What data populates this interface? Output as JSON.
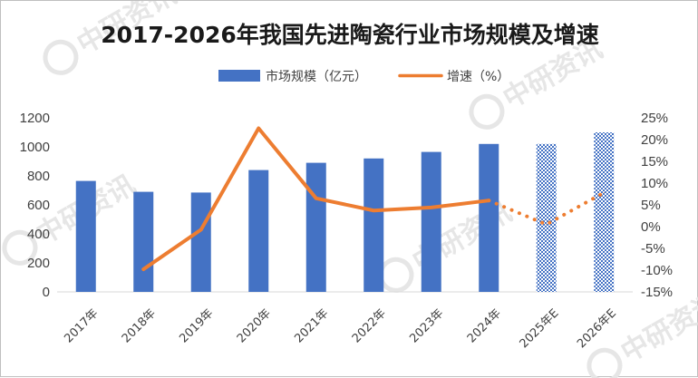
{
  "chart_data": {
    "type": "bar",
    "title": "2017-2026年我国先进陶瓷行业市场规模及增速",
    "categories": [
      "2017年",
      "2018年",
      "2019年",
      "2020年",
      "2021年",
      "2022年",
      "2023年",
      "2024年",
      "2025年E",
      "2026年E"
    ],
    "series": [
      {
        "name": "市场规模（亿元）",
        "type": "bar",
        "axis": "left",
        "values": [
          765,
          690,
          685,
          840,
          890,
          920,
          965,
          1020,
          1020,
          1100
        ],
        "estimated_from_index": 8,
        "color": "#4472c4"
      },
      {
        "name": "增速（%）",
        "type": "line",
        "axis": "right",
        "values": [
          null,
          -9.8,
          -0.7,
          22.6,
          6.5,
          3.7,
          4.4,
          6.0,
          0.5,
          7.8
        ],
        "estimated_from_index": 8,
        "color": "#ed7d31"
      }
    ],
    "y_left": {
      "range": [
        0,
        1200
      ],
      "ticks": [
        "0",
        "200",
        "400",
        "600",
        "800",
        "1000",
        "1200"
      ]
    },
    "y_right": {
      "range": [
        -15,
        25
      ],
      "ticks": [
        "-15%",
        "-10%",
        "-5%",
        "0%",
        "5%",
        "10%",
        "15%",
        "20%",
        "25%"
      ]
    },
    "grid": false,
    "legend": "top"
  },
  "watermark": "中研资讯"
}
